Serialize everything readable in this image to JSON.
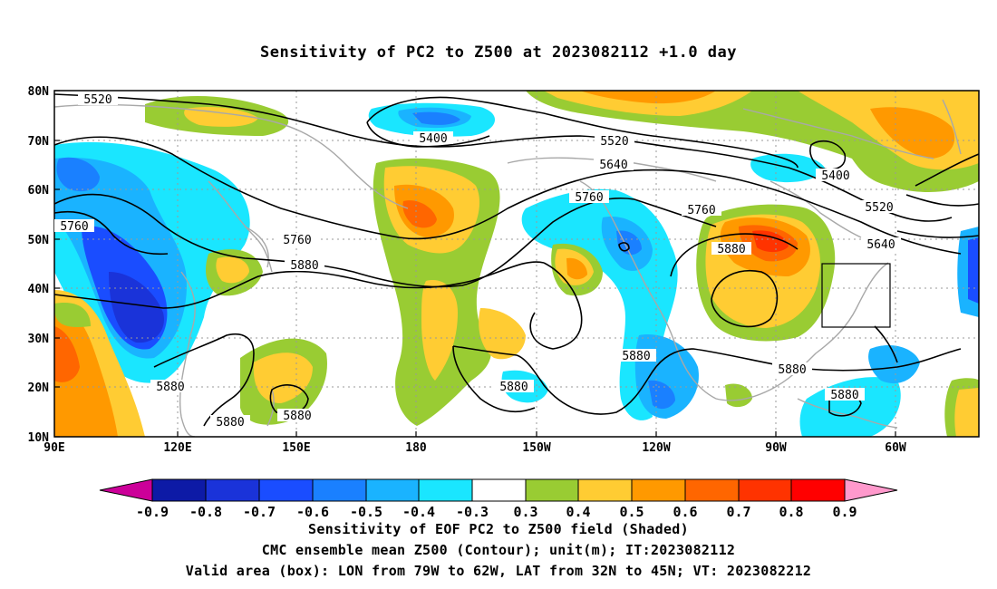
{
  "title": "Sensitivity of PC2 to Z500 at 2023082112 +1.0 day",
  "lat_labels": [
    "80N",
    "70N",
    "60N",
    "50N",
    "40N",
    "30N",
    "20N",
    "10N"
  ],
  "lon_labels": [
    "90E",
    "120E",
    "150E",
    "180",
    "150W",
    "120W",
    "90W",
    "60W"
  ],
  "contour_labels": [
    "5520",
    "5400",
    "5520",
    "5640",
    "5400",
    "5520",
    "5640",
    "5760",
    "5760",
    "5760",
    "5880",
    "5760",
    "5880",
    "5880",
    "5880",
    "5880",
    "5880",
    "5880",
    "5880",
    "5880"
  ],
  "colorbar": {
    "labels": [
      "-0.9",
      "-0.8",
      "-0.7",
      "-0.6",
      "-0.5",
      "-0.4",
      "-0.3",
      "0.3",
      "0.4",
      "0.5",
      "0.6",
      "0.7",
      "0.8",
      "0.9"
    ],
    "colors": [
      "#cc0099",
      "#0d1aa6",
      "#1a33d9",
      "#1a4dff",
      "#1a80ff",
      "#1ab3ff",
      "#1ae6ff",
      "#ffffff",
      "#99cc33",
      "#ffcc33",
      "#ff9900",
      "#ff6600",
      "#ff3300",
      "#ff0000",
      "#ff99cc"
    ]
  },
  "captions": [
    "Sensitivity of EOF PC2 to Z500 field (Shaded)",
    "CMC ensemble mean Z500 (Contour); unit(m); IT:2023082112",
    "Valid area (box): LON from 79W to 62W, LAT from 32N to 45N; VT: 2023082212"
  ]
}
